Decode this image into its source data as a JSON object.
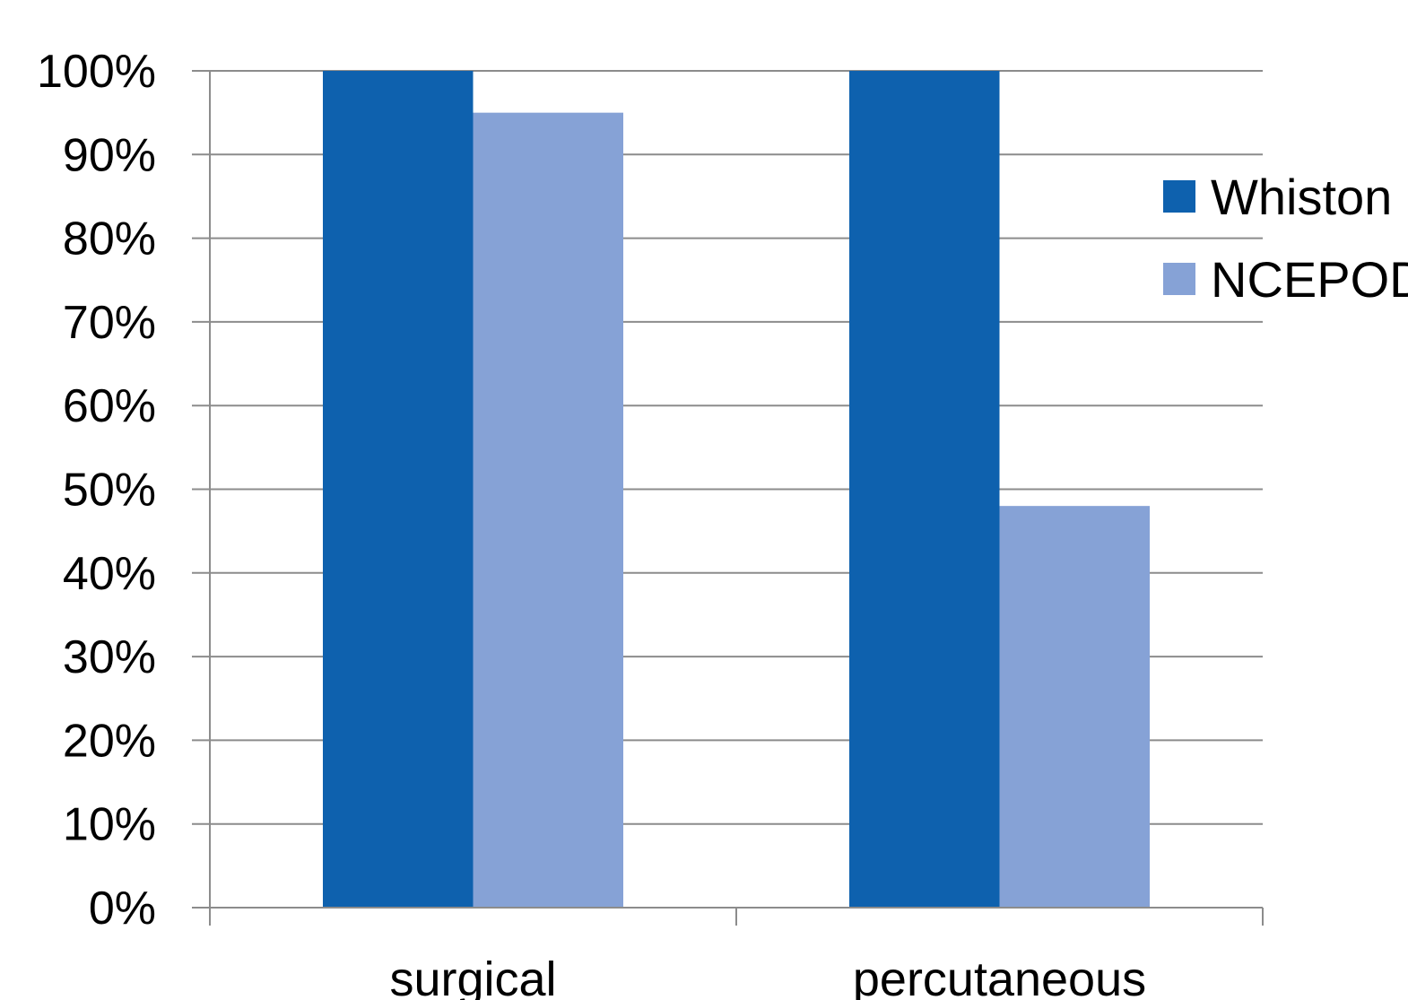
{
  "chart_data": {
    "type": "bar",
    "categories": [
      "surgical",
      "percutaneous"
    ],
    "series": [
      {
        "name": "Whiston",
        "values": [
          100,
          100
        ],
        "color": "#0E61AE"
      },
      {
        "name": "NCEPOD",
        "values": [
          95,
          48
        ],
        "color": "#86A2D6"
      }
    ],
    "y_ticks": [
      "0%",
      "10%",
      "20%",
      "30%",
      "40%",
      "50%",
      "60%",
      "70%",
      "80%",
      "90%",
      "100%"
    ],
    "ylim": [
      0,
      100
    ],
    "y_unit": "%",
    "grid": true,
    "legend_position": "right"
  }
}
